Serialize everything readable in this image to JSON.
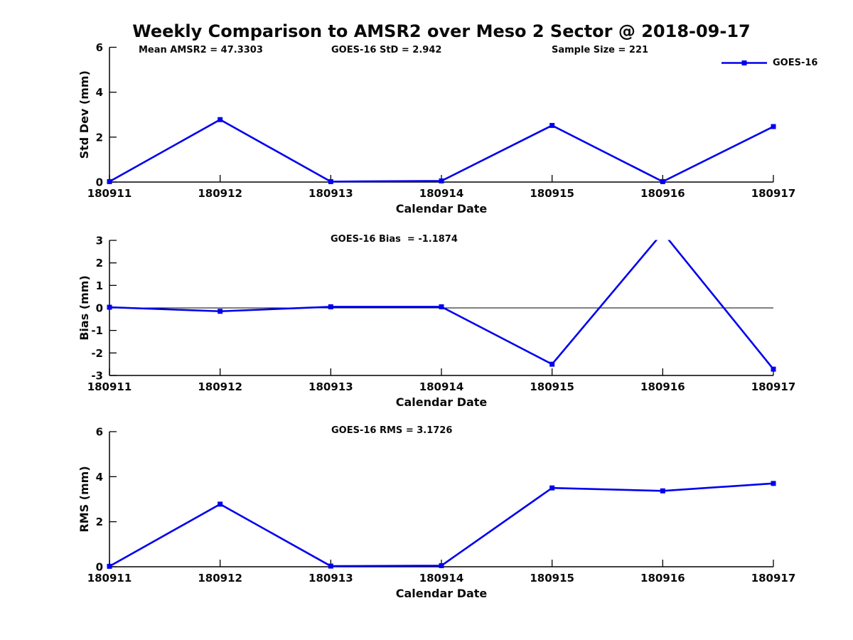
{
  "figure": {
    "title": "Weekly Comparison to AMSR2 over Meso 2 Sector @ 2018-09-17",
    "background_color": "#FFFFFF",
    "axis_color": "#000000",
    "text_color": "#0A0A0A"
  },
  "legend": {
    "label": "GOES-16",
    "line_color": "#0000EE",
    "marker": "filled-square",
    "position": "top-right"
  },
  "chart_data": [
    {
      "type": "line",
      "title": "",
      "annotations": [
        "Mean AMSR2 = 47.3303",
        "GOES-16 StD = 2.942",
        "Sample Size = 221"
      ],
      "categories": [
        "180911",
        "180912",
        "180913",
        "180914",
        "180915",
        "180916",
        "180917"
      ],
      "series": [
        {
          "name": "GOES-16",
          "values": [
            0.02,
            2.78,
            0.02,
            0.05,
            2.52,
            0.02,
            2.47
          ]
        }
      ],
      "xlabel": "Calendar Date",
      "ylabel": "Std Dev (mm)",
      "ylim": [
        0,
        6
      ],
      "yticks": [
        0,
        2,
        4,
        6
      ],
      "grid": false,
      "zero_line": false,
      "line_color": "#0000EE",
      "marker": "square"
    },
    {
      "type": "line",
      "title": "",
      "annotations": [
        "GOES-16 Bias  = -1.1874"
      ],
      "categories": [
        "180911",
        "180912",
        "180913",
        "180914",
        "180915",
        "180916",
        "180917"
      ],
      "series": [
        {
          "name": "GOES-16",
          "values": [
            0.03,
            -0.15,
            0.05,
            0.05,
            -2.5,
            3.35,
            -2.72
          ]
        }
      ],
      "xlabel": "Calendar Date",
      "ylabel": "Bias (mm)",
      "ylim": [
        -3,
        3
      ],
      "yticks": [
        -3,
        -2,
        -1,
        0,
        1,
        2,
        3
      ],
      "grid": false,
      "zero_line": true,
      "clip_note": "value at 180916 exceeds y-axis maximum and is clipped",
      "line_color": "#0000EE",
      "marker": "square"
    },
    {
      "type": "line",
      "title": "",
      "annotations": [
        "GOES-16 RMS = 3.1726"
      ],
      "categories": [
        "180911",
        "180912",
        "180913",
        "180914",
        "180915",
        "180916",
        "180917"
      ],
      "series": [
        {
          "name": "GOES-16",
          "values": [
            0.02,
            2.78,
            0.03,
            0.05,
            3.5,
            3.37,
            3.7
          ]
        }
      ],
      "xlabel": "Calendar Date",
      "ylabel": "RMS (mm)",
      "ylim": [
        0,
        6
      ],
      "yticks": [
        0,
        2,
        4,
        6
      ],
      "grid": false,
      "zero_line": false,
      "line_color": "#0000EE",
      "marker": "square"
    }
  ]
}
